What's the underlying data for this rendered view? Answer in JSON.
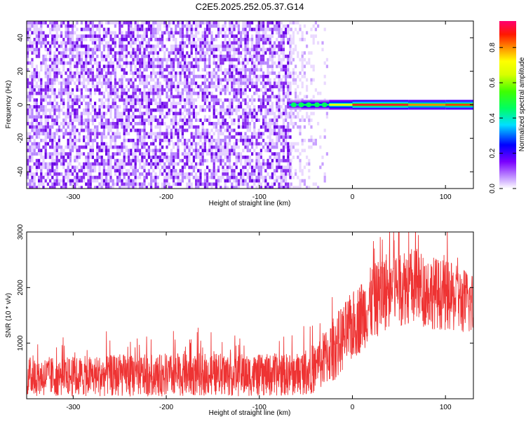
{
  "title": "C2E5.2025.252.05.37.G14",
  "chart_data": [
    {
      "type": "heatmap",
      "xlabel": "Height of straight line (km)",
      "ylabel": "Frequency (Hz)",
      "xlim": [
        -350,
        130
      ],
      "ylim": [
        -50,
        50
      ],
      "xticks": [
        -300,
        -200,
        -100,
        0,
        100
      ],
      "yticks": [
        -40,
        -20,
        0,
        20,
        40
      ],
      "noise_region": [
        -350,
        -67
      ],
      "faint_region": [
        -67,
        -28
      ],
      "tone_frequency_hz": 0,
      "tone_segments": [
        {
          "x0": -68,
          "x1": -55,
          "amp": 0.35
        },
        {
          "x0": -55,
          "x1": -40,
          "amp": 0.5
        },
        {
          "x0": -40,
          "x1": -25,
          "amp": 0.45
        },
        {
          "x0": -25,
          "x1": 0,
          "amp": 0.75
        },
        {
          "x0": 0,
          "x1": 60,
          "amp": 0.95
        },
        {
          "x0": 60,
          "x1": 100,
          "amp": 0.85
        },
        {
          "x0": 100,
          "x1": 130,
          "amp": 0.9
        }
      ],
      "colorbar": {
        "label": "Normalized spectral amplitude",
        "range": [
          0,
          0.95
        ],
        "ticks": [
          0,
          0.2,
          0.4,
          0.6,
          0.8
        ]
      }
    },
    {
      "type": "line",
      "xlabel": "Height of straight line (km)",
      "ylabel": "SNR (10 * v/v)",
      "xlim": [
        -350,
        130
      ],
      "ylim": [
        0,
        3000
      ],
      "xticks": [
        -300,
        -200,
        -100,
        0,
        100
      ],
      "yticks": [
        1000,
        2000,
        3000
      ],
      "series": [
        {
          "name": "SNR",
          "color": "#ee3333",
          "x": [
            -350,
            -300,
            -250,
            -200,
            -150,
            -100,
            -60,
            -40,
            -20,
            0,
            20,
            40,
            60,
            80,
            100,
            130
          ],
          "values": [
            400,
            400,
            420,
            420,
            440,
            420,
            440,
            550,
            900,
            1300,
            1700,
            2000,
            2050,
            1950,
            1850,
            1700
          ],
          "spread": [
            400,
            400,
            420,
            420,
            430,
            420,
            430,
            500,
            650,
            700,
            750,
            800,
            800,
            750,
            700,
            650
          ]
        }
      ]
    }
  ]
}
